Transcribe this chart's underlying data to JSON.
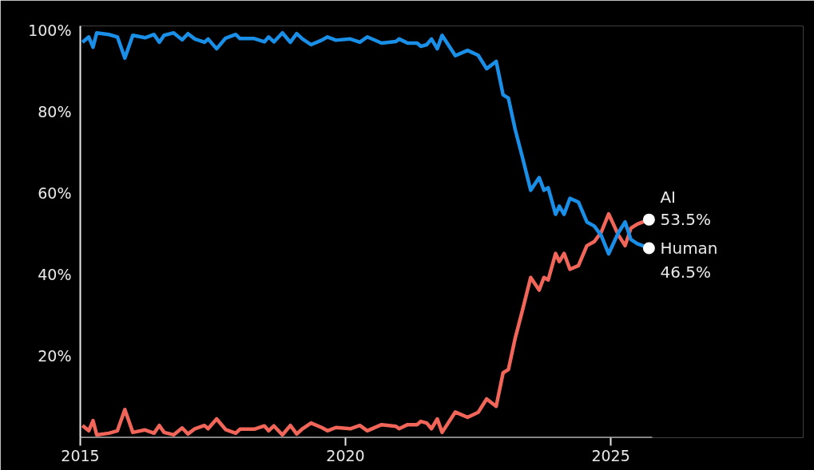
{
  "chart_data": {
    "type": "line",
    "x": [
      2015.04,
      2015.16,
      2015.24,
      2015.31,
      2015.54,
      2015.7,
      2015.84,
      2015.99,
      2016.22,
      2016.39,
      2016.49,
      2016.58,
      2016.76,
      2016.92,
      2017.03,
      2017.16,
      2017.34,
      2017.41,
      2017.57,
      2017.74,
      2017.93,
      2018.01,
      2018.28,
      2018.47,
      2018.55,
      2018.65,
      2018.81,
      2018.96,
      2019.08,
      2019.19,
      2019.35,
      2019.55,
      2019.66,
      2019.82,
      2020.09,
      2020.27,
      2020.41,
      2020.68,
      2020.95,
      2021.01,
      2021.17,
      2021.35,
      2021.42,
      2021.53,
      2021.62,
      2021.73,
      2021.82,
      2022.07,
      2022.3,
      2022.5,
      2022.66,
      2022.84,
      2022.97,
      2023.07,
      2023.2,
      2023.34,
      2023.49,
      2023.65,
      2023.74,
      2023.82,
      2023.96,
      2024.03,
      2024.12,
      2024.23,
      2024.39,
      2024.55,
      2024.69,
      2024.82,
      2024.96,
      2025.14,
      2025.27,
      2025.38,
      2025.5,
      2025.72
    ],
    "series": [
      {
        "name": "AI",
        "color": "#f2665a",
        "values": [
          3.0,
          1.7,
          4.2,
          0.7,
          1.1,
          1.7,
          6.9,
          1.3,
          1.9,
          1.1,
          3.0,
          1.3,
          0.7,
          2.4,
          0.9,
          2.2,
          3.0,
          2.2,
          4.6,
          2.0,
          1.1,
          2.1,
          2.1,
          2.9,
          1.7,
          2.9,
          0.7,
          3.0,
          0.9,
          2.2,
          3.6,
          2.5,
          1.7,
          2.5,
          2.2,
          3.0,
          1.7,
          3.2,
          2.8,
          2.2,
          3.2,
          3.2,
          4.0,
          3.6,
          2.2,
          4.6,
          1.3,
          6.3,
          5.0,
          6.2,
          9.5,
          7.7,
          15.9,
          16.7,
          24.5,
          31.5,
          39.3,
          36.2,
          39.3,
          38.7,
          45.2,
          43.2,
          45.2,
          41.3,
          42.2,
          47.1,
          48.1,
          50.4,
          54.9,
          49.8,
          47.1,
          51.4,
          52.4,
          53.5
        ]
      },
      {
        "name": "Human",
        "color": "#1a8fe8",
        "values": [
          97.0,
          98.3,
          95.8,
          99.3,
          98.9,
          98.3,
          93.1,
          98.7,
          98.1,
          98.9,
          97.0,
          98.7,
          99.3,
          97.6,
          99.1,
          97.8,
          97.0,
          97.8,
          95.4,
          98.0,
          98.9,
          97.9,
          97.9,
          97.1,
          98.3,
          97.1,
          99.3,
          97.0,
          99.1,
          97.8,
          96.4,
          97.5,
          98.3,
          97.5,
          97.8,
          97.0,
          98.3,
          96.8,
          97.2,
          97.8,
          96.8,
          96.8,
          96.0,
          96.4,
          97.8,
          95.4,
          98.7,
          93.7,
          95.0,
          93.8,
          90.5,
          92.3,
          84.1,
          83.3,
          75.5,
          68.5,
          60.7,
          63.8,
          60.7,
          61.3,
          54.8,
          56.8,
          54.8,
          58.7,
          57.8,
          52.9,
          51.9,
          49.6,
          45.1,
          50.2,
          52.9,
          48.6,
          47.6,
          46.5
        ]
      }
    ],
    "annotations": [
      {
        "text": "53.5%",
        "x": 2025.72,
        "y": 53.5
      },
      {
        "text": "46.5%",
        "x": 2025.72,
        "y": 46.5
      }
    ],
    "xlim": [
      2015,
      2025.78
    ],
    "xticks": [
      2015,
      2020,
      2025
    ],
    "ylim": [
      0,
      101
    ],
    "yticks": [
      {
        "value": 20,
        "label": "20%"
      },
      {
        "value": 40,
        "label": "40%"
      },
      {
        "value": 60,
        "label": "60%"
      },
      {
        "value": 80,
        "label": "80%"
      },
      {
        "value": 100,
        "label": "100%"
      }
    ],
    "grid": false,
    "legend": false,
    "marker": "none",
    "line_style": "solid"
  }
}
